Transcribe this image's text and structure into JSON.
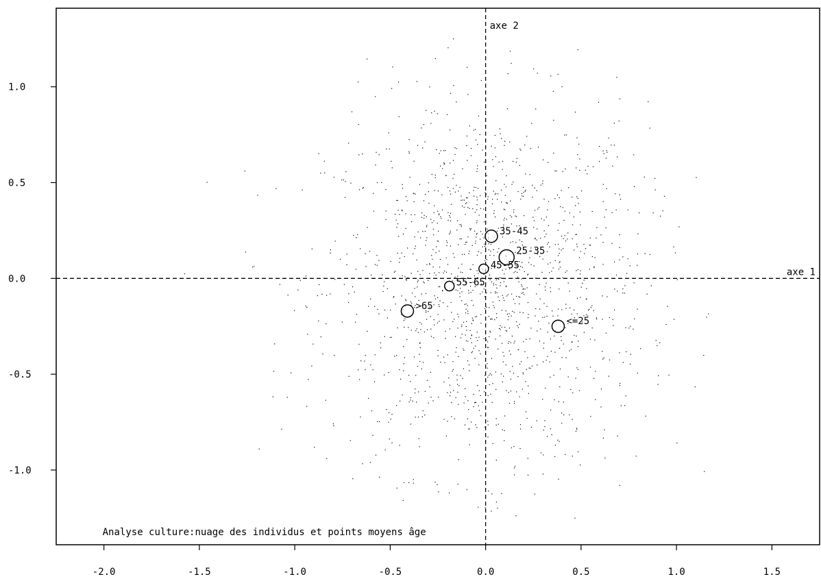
{
  "chart_data": {
    "type": "scatter",
    "title": "Analyse culture:nuage des individus et points moyens âge",
    "xlim": [
      -2.25,
      1.75
    ],
    "ylim": [
      -1.39,
      1.41
    ],
    "x_ticks": [
      {
        "value": -2.0,
        "label": "-2.0"
      },
      {
        "value": -1.5,
        "label": "-1.5"
      },
      {
        "value": -1.0,
        "label": "-1.0"
      },
      {
        "value": -0.5,
        "label": "-0.5"
      },
      {
        "value": 0.0,
        "label": "0.0"
      },
      {
        "value": 0.5,
        "label": "0.5"
      },
      {
        "value": 1.0,
        "label": "1.0"
      },
      {
        "value": 1.5,
        "label": "1.5"
      }
    ],
    "y_ticks": [
      {
        "value": 1.0,
        "label": "1.0"
      },
      {
        "value": 0.5,
        "label": "0.5"
      },
      {
        "value": 0.0,
        "label": "0.0"
      },
      {
        "value": -0.5,
        "label": "-0.5"
      },
      {
        "value": -1.0,
        "label": "-1.0"
      }
    ],
    "axis1_label": "axe 1",
    "axis2_label": "axe 2",
    "group_means": [
      {
        "label": "35-45",
        "x": 0.03,
        "y": 0.22,
        "size": "small"
      },
      {
        "label": "25-35",
        "x": 0.11,
        "y": 0.11,
        "size": "large"
      },
      {
        "label": "45-55",
        "x": -0.01,
        "y": 0.05,
        "size": "tiny"
      },
      {
        "label": "55-65",
        "x": -0.19,
        "y": -0.04,
        "size": "tiny"
      },
      {
        "label": ">65",
        "x": -0.41,
        "y": -0.17,
        "size": "small"
      },
      {
        "label": "<=25",
        "x": 0.38,
        "y": -0.25,
        "size": "small"
      }
    ],
    "cloud": {
      "description_type": "individuals",
      "count": 1500,
      "x_mean": 0.0,
      "y_mean": -0.05,
      "x_sd": 0.42,
      "y_sd": 0.48,
      "x_range": [
        -1.75,
        1.2
      ],
      "y_range": [
        -1.25,
        1.3
      ]
    },
    "grid": false
  }
}
